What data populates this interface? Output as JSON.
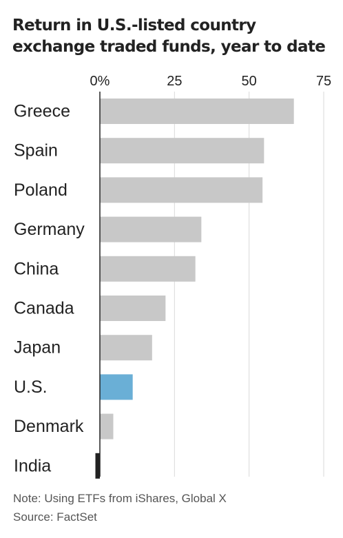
{
  "title_lines": [
    "Return in U.S.-listed country",
    "exchange traded funds, year to date"
  ],
  "notes": {
    "note": "Note: Using ETFs from iShares, Global X",
    "source": "Source: FactSet"
  },
  "colors": {
    "bar": "#c8c8c8",
    "highlight": "#6aafd6",
    "negative": "#222222",
    "grid": "#d9d9d9",
    "axis": "#222222",
    "text": "#222222"
  },
  "chart_data": {
    "type": "bar",
    "orientation": "horizontal",
    "title": "Return in U.S.-listed country exchange traded funds, year to date",
    "categories": [
      "Greece",
      "Spain",
      "Poland",
      "Germany",
      "China",
      "Canada",
      "Japan",
      "U.S.",
      "Denmark",
      "India"
    ],
    "values": [
      65,
      55,
      54.5,
      34,
      32,
      22,
      17.5,
      11,
      4.5,
      -1.5
    ],
    "highlight": "U.S.",
    "xlim": [
      0,
      75
    ],
    "ticks": [
      0,
      25,
      50,
      75
    ],
    "tick_labels": [
      "0%",
      "25",
      "50",
      "75"
    ],
    "grid": true,
    "xlabel": "",
    "ylabel": ""
  }
}
